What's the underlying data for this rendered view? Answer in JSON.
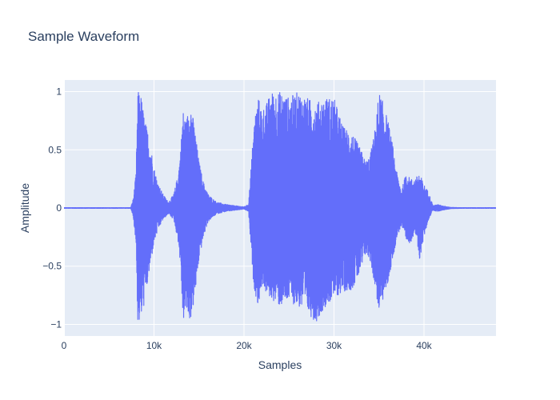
{
  "chart_data": {
    "type": "line",
    "title": "Sample Waveform",
    "xlabel": "Samples",
    "ylabel": "Amplitude",
    "xlim": [
      0,
      48000
    ],
    "ylim": [
      -1.1,
      1.1
    ],
    "x_ticks": [
      0,
      10000,
      20000,
      30000,
      40000
    ],
    "x_tick_labels": [
      "0",
      "10k",
      "20k",
      "30k",
      "40k"
    ],
    "y_ticks": [
      -1,
      -0.5,
      0,
      0.5,
      1
    ],
    "y_tick_labels": [
      "−1",
      "−0.5",
      "0",
      "0.5",
      "1"
    ],
    "grid": true,
    "colors": {
      "line": "#636efa",
      "plot_bg": "#e5ecf6",
      "grid": "#ffffff",
      "text": "#2a3f5f"
    },
    "series": [
      {
        "envelope_x": [
          0,
          7400,
          7700,
          8000,
          8200,
          8500,
          9000,
          9500,
          10000,
          10500,
          11000,
          11600,
          12200,
          12700,
          13000,
          13200,
          13600,
          14000,
          14500,
          15000,
          15500,
          16000,
          16500,
          17000,
          18000,
          19000,
          20000,
          20500,
          21000,
          21200,
          21600,
          22000,
          22500,
          23000,
          24000,
          25000,
          26000,
          27000,
          28000,
          29000,
          30000,
          31000,
          32000,
          33000,
          33500,
          34000,
          34500,
          35000,
          35500,
          36000,
          36500,
          37000,
          37500,
          38000,
          38500,
          39000,
          39500,
          40000,
          40500,
          41000,
          41500,
          42000,
          43000,
          44000,
          46000,
          48000
        ],
        "envelope_max": [
          0.003,
          0.003,
          0.08,
          0.3,
          1.0,
          1.0,
          0.75,
          0.6,
          0.35,
          0.2,
          0.12,
          0.05,
          0.12,
          0.3,
          0.55,
          0.85,
          0.75,
          0.95,
          0.7,
          0.4,
          0.22,
          0.12,
          0.08,
          0.05,
          0.03,
          0.02,
          0.01,
          0.03,
          0.6,
          0.8,
          0.95,
          0.85,
          0.9,
          1.0,
          1.0,
          0.95,
          1.0,
          0.95,
          0.9,
          0.95,
          0.95,
          0.7,
          0.65,
          0.5,
          0.4,
          0.45,
          0.65,
          1.0,
          0.9,
          0.75,
          0.55,
          0.3,
          0.15,
          0.3,
          0.25,
          0.25,
          0.3,
          0.2,
          0.14,
          0.02,
          0.03,
          0.02,
          0.005,
          0.003,
          0.003,
          0.003
        ],
        "envelope_min": [
          -0.003,
          -0.003,
          -0.08,
          -0.3,
          -1.0,
          -0.98,
          -0.8,
          -0.55,
          -0.3,
          -0.18,
          -0.1,
          -0.05,
          -0.1,
          -0.3,
          -0.55,
          -0.98,
          -0.9,
          -0.98,
          -0.8,
          -0.45,
          -0.25,
          -0.12,
          -0.08,
          -0.05,
          -0.03,
          -0.02,
          -0.01,
          -0.03,
          -0.6,
          -0.72,
          -0.85,
          -0.65,
          -0.75,
          -0.78,
          -0.85,
          -0.8,
          -0.85,
          -0.9,
          -0.98,
          -0.85,
          -0.78,
          -0.72,
          -0.7,
          -0.55,
          -0.4,
          -0.45,
          -0.65,
          -0.9,
          -0.78,
          -0.65,
          -0.45,
          -0.25,
          -0.15,
          -0.3,
          -0.3,
          -0.2,
          -0.45,
          -0.25,
          -0.1,
          -0.02,
          -0.03,
          -0.02,
          -0.005,
          -0.003,
          -0.003,
          -0.003
        ]
      }
    ]
  }
}
